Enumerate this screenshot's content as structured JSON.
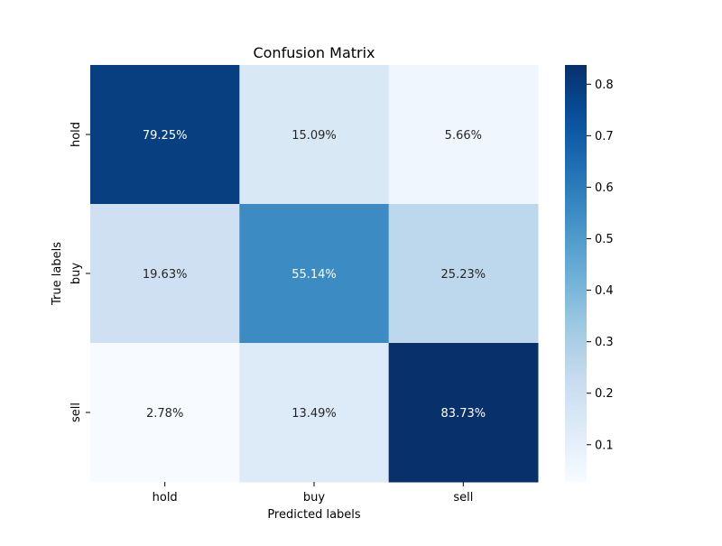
{
  "chart_data": {
    "type": "heatmap",
    "title": "Confusion Matrix",
    "xlabel": "Predicted labels",
    "ylabel": "True labels",
    "x_categories": [
      "hold",
      "buy",
      "sell"
    ],
    "y_categories": [
      "hold",
      "buy",
      "sell"
    ],
    "values": [
      [
        0.7925,
        0.1509,
        0.0566
      ],
      [
        0.1963,
        0.5514,
        0.2523
      ],
      [
        0.0278,
        0.1349,
        0.8373
      ]
    ],
    "cell_labels": [
      [
        "79.25%",
        "15.09%",
        "5.66%"
      ],
      [
        "19.63%",
        "55.14%",
        "25.23%"
      ],
      [
        "2.78%",
        "13.49%",
        "83.73%"
      ]
    ],
    "colormap": "Blues",
    "colorbar": {
      "min": 0.0278,
      "max": 0.8373,
      "ticks": [
        0.1,
        0.2,
        0.3,
        0.4,
        0.5,
        0.6,
        0.7,
        0.8
      ],
      "tick_labels": [
        "0.1",
        "0.2",
        "0.3",
        "0.4",
        "0.5",
        "0.6",
        "0.7",
        "0.8"
      ]
    },
    "grid": false
  }
}
